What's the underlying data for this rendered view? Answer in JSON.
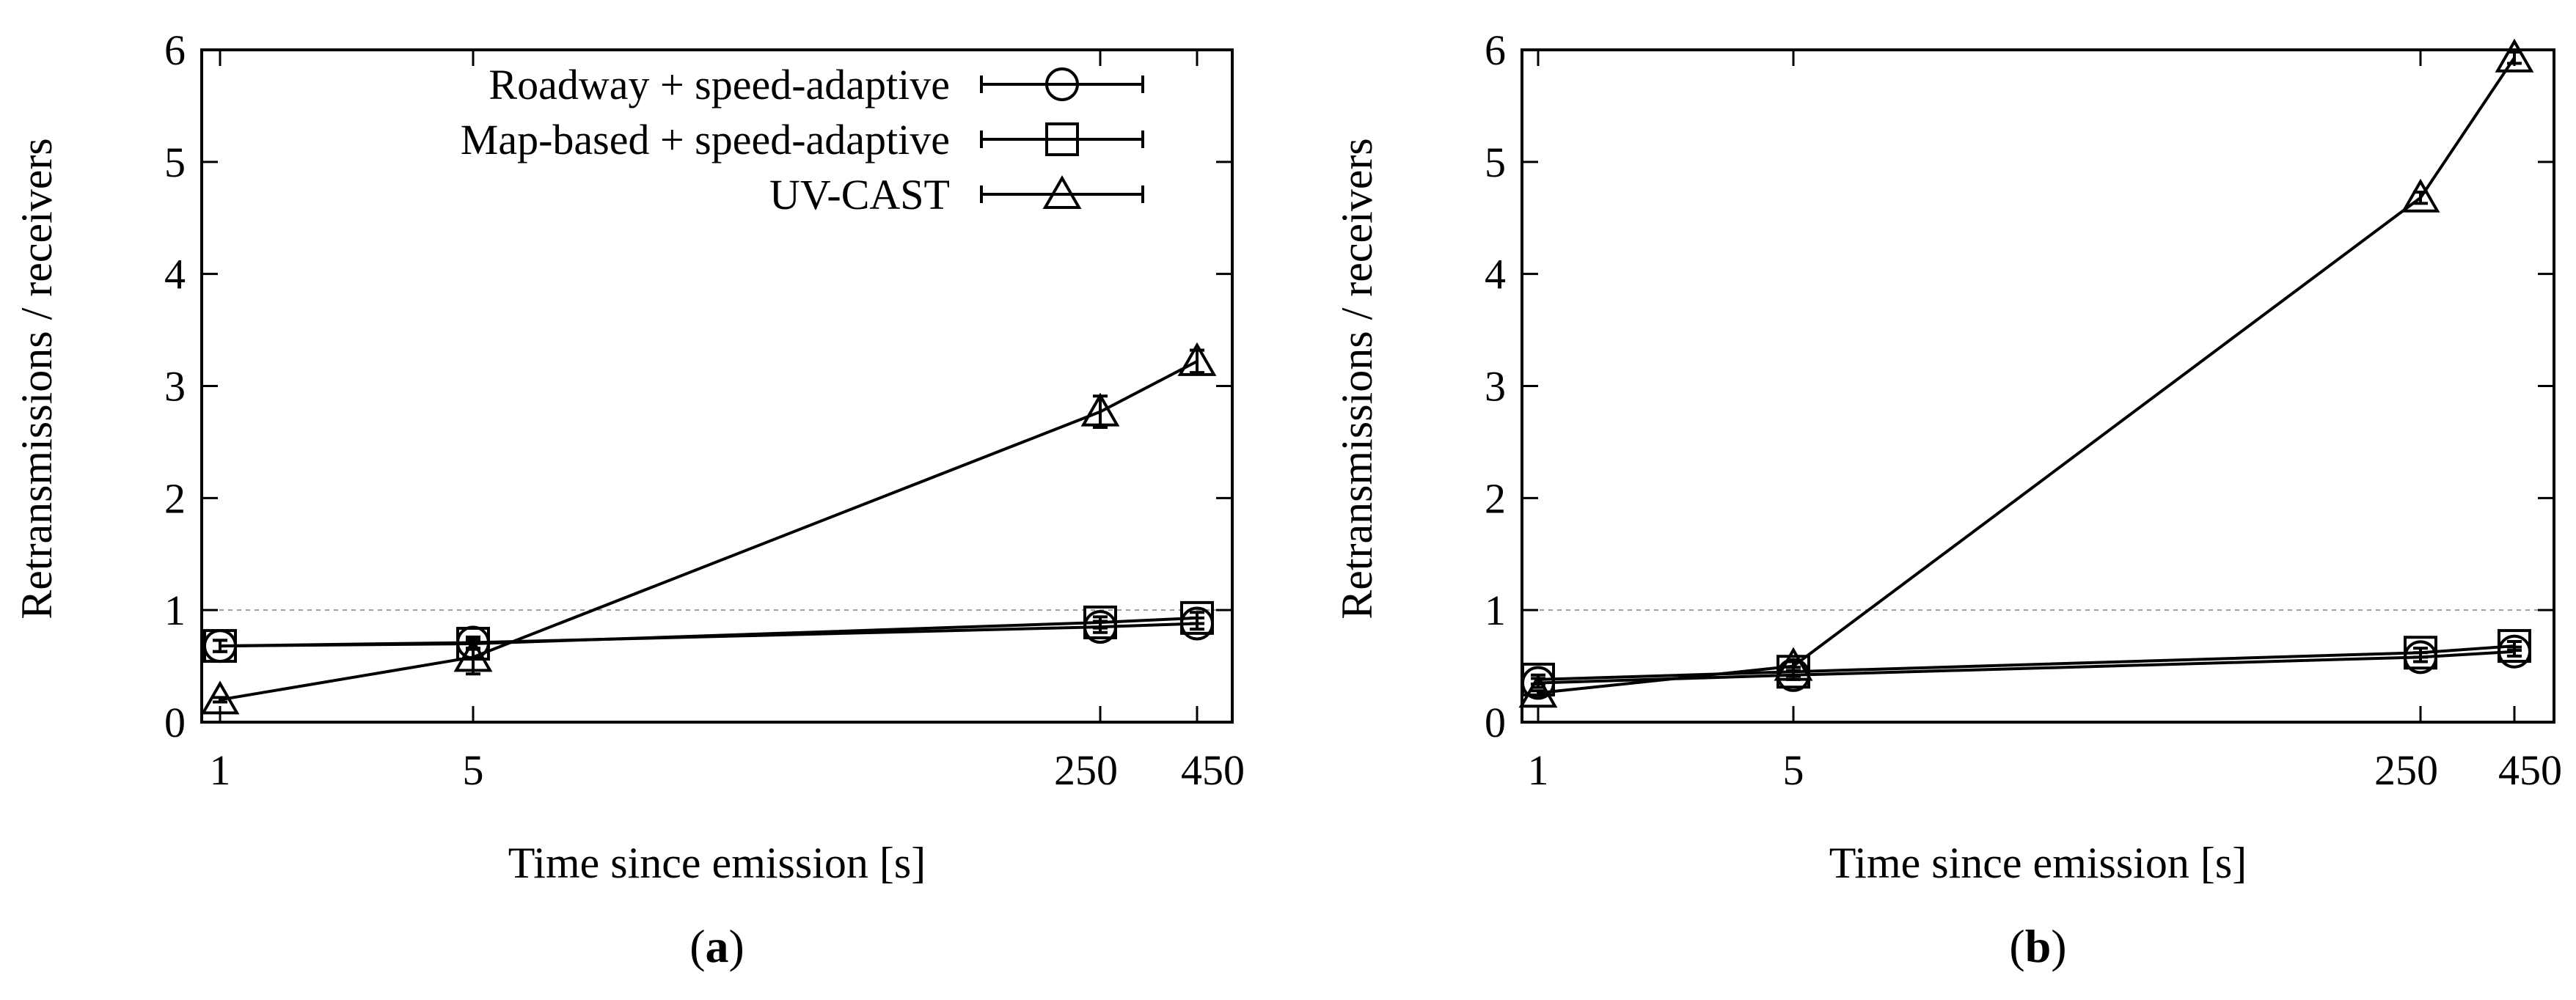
{
  "chart_data": [
    {
      "type": "line",
      "panel_label": "a",
      "xlabel": "Time since emission [s]",
      "ylabel": "Retransmissions / receivers",
      "categories": [
        "1",
        "5",
        "250",
        "450"
      ],
      "ylim": [
        0,
        6
      ],
      "yticks": [
        "0",
        "1",
        "2",
        "3",
        "4",
        "5",
        "6"
      ],
      "reference_line": 1,
      "legend_position": "top-right",
      "series": [
        {
          "name": "Roadway + speed-adaptive",
          "marker": "circle",
          "values": [
            0.68,
            0.71,
            0.85,
            0.88
          ],
          "errors": [
            0.05,
            0.05,
            0.05,
            0.05
          ]
        },
        {
          "name": "Map-based + speed-adaptive",
          "marker": "square",
          "values": [
            0.68,
            0.7,
            0.89,
            0.93
          ],
          "errors": [
            0.05,
            0.05,
            0.05,
            0.05
          ]
        },
        {
          "name": "UV-CAST",
          "marker": "triangle",
          "values": [
            0.2,
            0.58,
            2.77,
            3.22
          ],
          "errors": [
            0.02,
            0.15,
            0.14,
            0.1
          ]
        }
      ]
    },
    {
      "type": "line",
      "panel_label": "b",
      "xlabel": "Time since emission [s]",
      "ylabel": "Retransmissions / receivers",
      "categories": [
        "1",
        "5",
        "250",
        "450"
      ],
      "ylim": [
        0,
        6
      ],
      "yticks": [
        "0",
        "1",
        "2",
        "3",
        "4",
        "5",
        "6"
      ],
      "reference_line": 1,
      "legend_position": "none",
      "series": [
        {
          "name": "Roadway + speed-adaptive",
          "marker": "circle",
          "values": [
            0.35,
            0.42,
            0.58,
            0.63
          ],
          "errors": [
            0.04,
            0.04,
            0.04,
            0.04
          ]
        },
        {
          "name": "Map-based + speed-adaptive",
          "marker": "square",
          "values": [
            0.38,
            0.45,
            0.62,
            0.68
          ],
          "errors": [
            0.04,
            0.04,
            0.04,
            0.04
          ]
        },
        {
          "name": "UV-CAST",
          "marker": "triangle",
          "values": [
            0.26,
            0.5,
            4.68,
            5.93
          ],
          "errors": [
            0.02,
            0.04,
            0.05,
            0.05
          ]
        }
      ]
    }
  ]
}
